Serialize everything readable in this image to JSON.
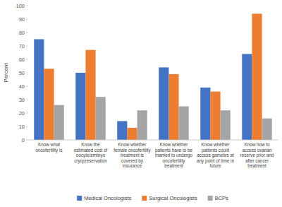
{
  "chart_data": {
    "type": "bar",
    "categories": [
      "Know what oncofertility is",
      "Know the estimated cost of oocyte/embryo cryopreservation",
      "Know whether female oncofertility treatment is covered by insurance",
      "Know whether patients have to be married to undergo oncofertility treatment",
      "Know whether patients could access gametes at any point of time in future",
      "Know how to access ovarian reserve prior and after cancer treatment"
    ],
    "series": [
      {
        "name": "Medical Oncologists",
        "color": "#4472c4",
        "values": [
          75,
          50,
          14,
          54,
          39,
          64
        ]
      },
      {
        "name": "Surgical Oncologists",
        "color": "#ed7d31",
        "values": [
          53,
          67,
          9,
          49,
          36,
          94
        ]
      },
      {
        "name": "BCPs",
        "color": "#a5a5a5",
        "values": [
          26,
          32,
          22,
          25,
          22,
          16
        ]
      }
    ],
    "y_label": "Percent",
    "ylim": [
      0,
      100
    ],
    "yticks": [
      0,
      10,
      20,
      30,
      40,
      50,
      60,
      70,
      80,
      90,
      100
    ],
    "grid": false,
    "legend": "bottom"
  }
}
